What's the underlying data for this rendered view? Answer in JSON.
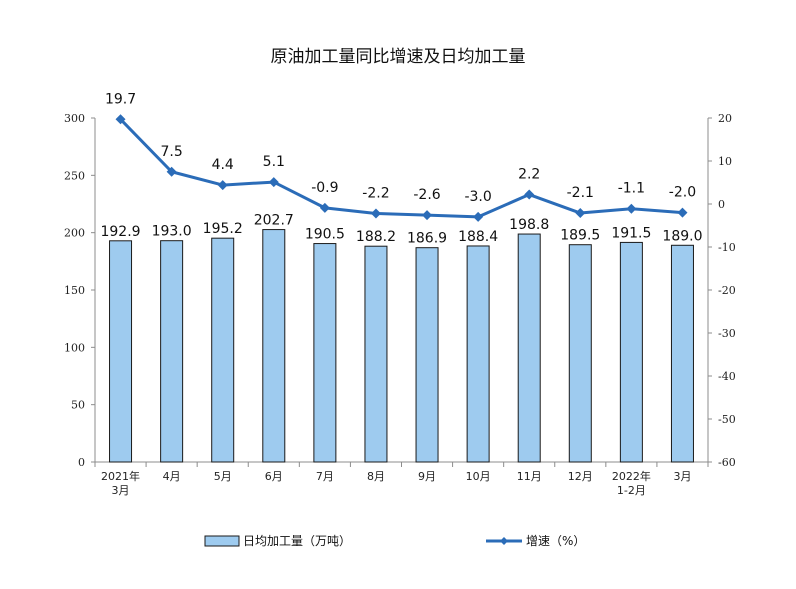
{
  "chart_data": {
    "type": "bar+line",
    "title": "原油加工量同比增速及日均加工量",
    "categories": [
      "2021年\n3月",
      "4月",
      "5月",
      "6月",
      "7月",
      "8月",
      "9月",
      "10月",
      "11月",
      "12月",
      "2022年\n1-2月",
      "3月"
    ],
    "series": [
      {
        "name": "日均加工量（万吨）",
        "type": "bar",
        "axis": "left",
        "values": [
          192.9,
          193.0,
          195.2,
          202.7,
          190.5,
          188.2,
          186.9,
          188.4,
          198.8,
          189.5,
          191.5,
          189.0
        ],
        "labels": [
          "192.9",
          "193.0",
          "195.2",
          "202.7",
          "190.5",
          "188.2",
          "186.9",
          "188.4",
          "198.8",
          "189.5",
          "191.5",
          "189.0"
        ]
      },
      {
        "name": "增速（%）",
        "type": "line",
        "axis": "right",
        "values": [
          19.7,
          7.5,
          4.4,
          5.1,
          -0.9,
          -2.2,
          -2.6,
          -3.0,
          2.2,
          -2.1,
          -1.1,
          -2.0
        ],
        "labels": [
          "19.7",
          "7.5",
          "4.4",
          "5.1",
          "-0.9",
          "-2.2",
          "-2.6",
          "-3.0",
          "2.2",
          "-2.1",
          "-1.1",
          "-2.0"
        ]
      }
    ],
    "y_left": {
      "lim": [
        0,
        300
      ],
      "ticks": [
        0,
        50,
        100,
        150,
        200,
        250,
        300
      ],
      "tick_labels": [
        "0",
        "50",
        "100",
        "150",
        "200",
        "250",
        "300"
      ]
    },
    "y_right": {
      "lim": [
        -60,
        20
      ],
      "ticks": [
        -60,
        -50,
        -40,
        -30,
        -20,
        -10,
        0,
        10,
        20
      ],
      "tick_labels": [
        "-60",
        "-50",
        "-40",
        "-30",
        "-20",
        "-10",
        "0",
        "10",
        "20"
      ]
    },
    "legend": {
      "placement": "bottom"
    },
    "grid": false,
    "colors": {
      "bar_fill": "#9ecbef",
      "bar_stroke": "#1a1a1a",
      "line": "#2b6cb8",
      "axis": "#8c8c8c"
    }
  }
}
